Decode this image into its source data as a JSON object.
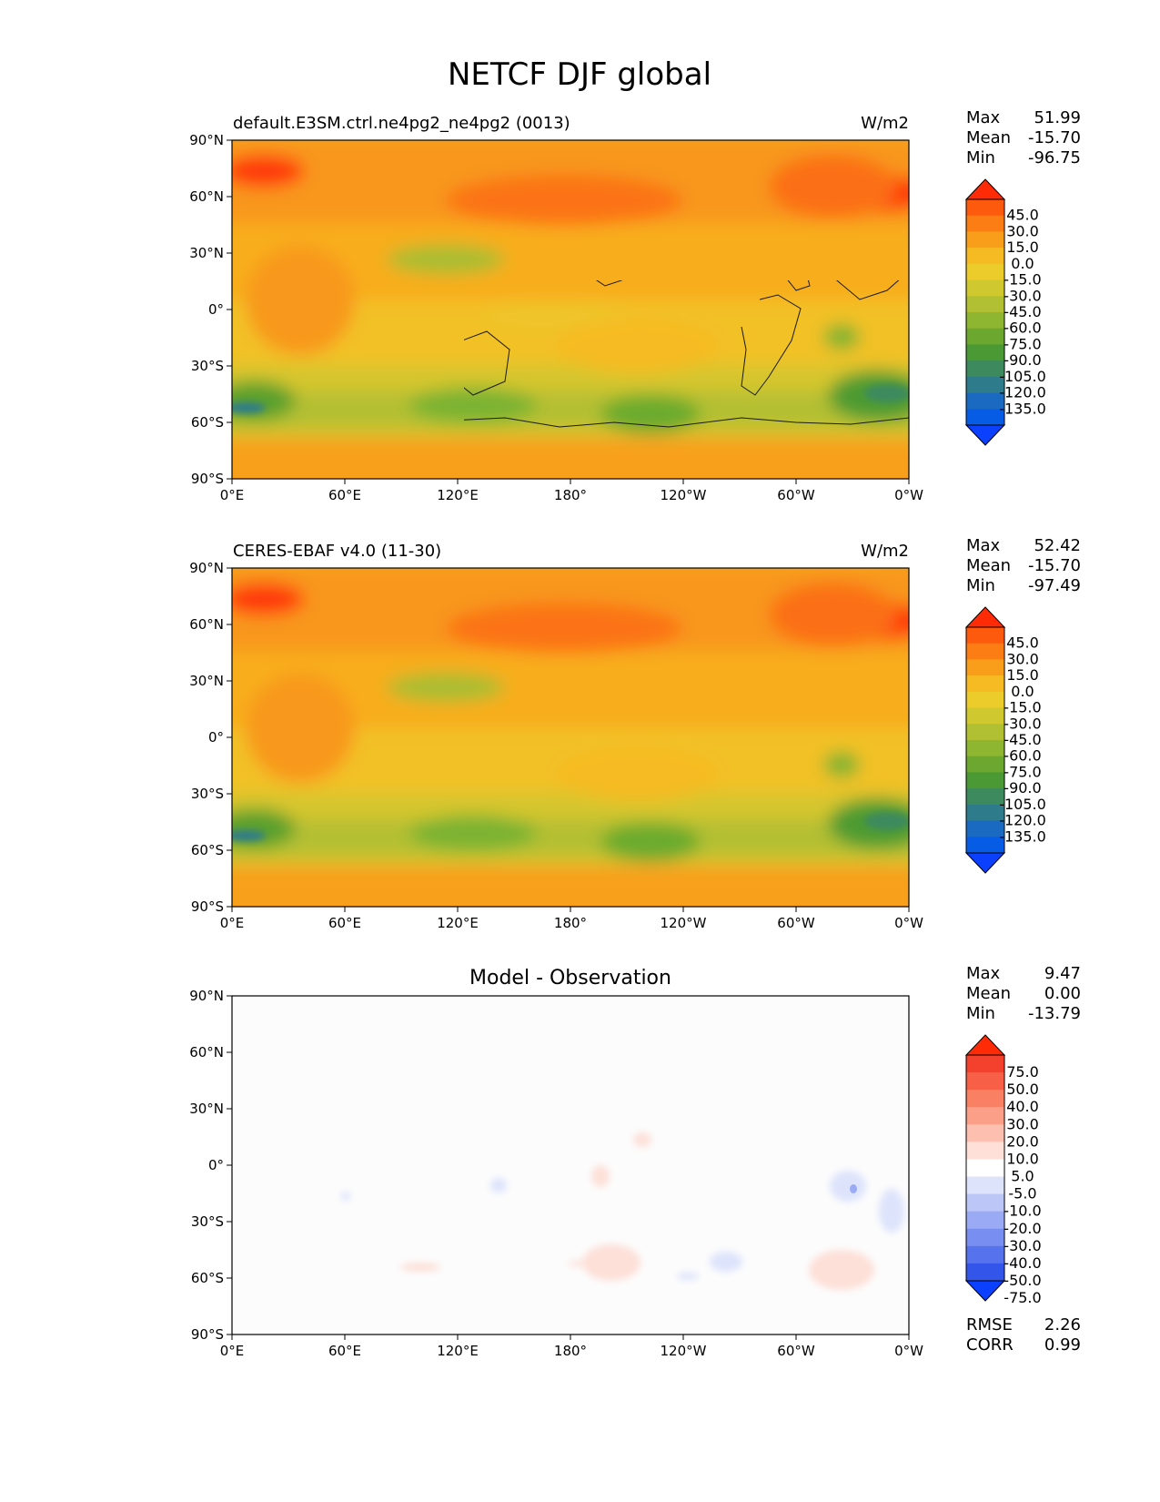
{
  "figure": {
    "title": "NETCF DJF global"
  },
  "panels": [
    {
      "id": "test",
      "title_left": "default.E3SM.ctrl.ne4pg2_ne4pg2 (0013)",
      "title_center": "",
      "units": "W/m2",
      "stats": [
        {
          "label": "Max",
          "value": "51.99"
        },
        {
          "label": "Mean",
          "value": "-15.70"
        },
        {
          "label": "Min",
          "value": "-96.75"
        }
      ],
      "colorbar": {
        "ticks": [
          "45.0",
          "30.0",
          "15.0",
          "0.0",
          "-15.0",
          "-30.0",
          "-45.0",
          "-60.0",
          "-75.0",
          "-90.0",
          "-105.0",
          "-120.0",
          "-135.0"
        ],
        "colors": [
          "#ff2a06",
          "#fe5a0d",
          "#fb7d13",
          "#f89e1a",
          "#f6bb22",
          "#ebcc2b",
          "#cfc82f",
          "#b1c032",
          "#8eb631",
          "#6ca82f",
          "#4a9935",
          "#3d8a5e",
          "#2e7b8c",
          "#1b6ac1",
          "#075ce6",
          "#0b40ff"
        ]
      }
    },
    {
      "id": "reference",
      "title_left": "CERES-EBAF v4.0 (11-30)",
      "title_center": "",
      "units": "W/m2",
      "stats": [
        {
          "label": "Max",
          "value": "52.42"
        },
        {
          "label": "Mean",
          "value": "-15.70"
        },
        {
          "label": "Min",
          "value": "-97.49"
        }
      ],
      "colorbar": {
        "ticks": [
          "45.0",
          "30.0",
          "15.0",
          "0.0",
          "-15.0",
          "-30.0",
          "-45.0",
          "-60.0",
          "-75.0",
          "-90.0",
          "-105.0",
          "-120.0",
          "-135.0"
        ],
        "colors": [
          "#ff2a06",
          "#fe5a0d",
          "#fb7d13",
          "#f89e1a",
          "#f6bb22",
          "#ebcc2b",
          "#cfc82f",
          "#b1c032",
          "#8eb631",
          "#6ca82f",
          "#4a9935",
          "#3d8a5e",
          "#2e7b8c",
          "#1b6ac1",
          "#075ce6",
          "#0b40ff"
        ]
      }
    },
    {
      "id": "difference",
      "title_left": "",
      "title_center": "Model - Observation",
      "units": "",
      "stats": [
        {
          "label": "Max",
          "value": "9.47"
        },
        {
          "label": "Mean",
          "value": "0.00"
        },
        {
          "label": "Min",
          "value": "-13.79"
        }
      ],
      "extra_stats": [
        {
          "label": "RMSE",
          "value": "2.26"
        },
        {
          "label": "CORR",
          "value": "0.99"
        }
      ],
      "colorbar": {
        "ticks": [
          "75.0",
          "50.0",
          "40.0",
          "30.0",
          "20.0",
          "10.0",
          "5.0",
          "-5.0",
          "-10.0",
          "-20.0",
          "-30.0",
          "-40.0",
          "-50.0",
          "-75.0"
        ],
        "colors": [
          "#ff2a06",
          "#f4412e",
          "#f76046",
          "#f98063",
          "#fb9f88",
          "#fdc0b0",
          "#fee0d8",
          "#ffffff",
          "#dde3fb",
          "#bcc7f8",
          "#9aaaf4",
          "#788ef1",
          "#5672ed",
          "#3455ea",
          "#0b40ff"
        ]
      }
    }
  ],
  "axes": {
    "lat_ticks": [
      "90°N",
      "60°N",
      "30°N",
      "0°",
      "30°S",
      "60°S",
      "90°S"
    ],
    "lon_ticks": [
      "0°E",
      "60°E",
      "120°E",
      "180°",
      "120°W",
      "60°W",
      "0°W"
    ]
  },
  "chart_data": [
    {
      "type": "heatmap",
      "title": "default.E3SM.ctrl.ne4pg2_ne4pg2 (0013)",
      "units": "W/m2",
      "xlim": [
        0,
        360
      ],
      "ylim": [
        -90,
        90
      ],
      "max": 51.99,
      "mean": -15.7,
      "min": -96.75,
      "fields": [
        {
          "lon": 20,
          "lat": 68,
          "value": 40
        },
        {
          "lon": 330,
          "lat": 60,
          "value": 45
        },
        {
          "lon": 120,
          "lat": 60,
          "value": 25
        },
        {
          "lon": 100,
          "lat": 40,
          "value": 15
        },
        {
          "lon": 110,
          "lat": 28,
          "value": -50
        },
        {
          "lon": 180,
          "lat": 15,
          "value": -25
        },
        {
          "lon": 25,
          "lat": 15,
          "value": 10
        },
        {
          "lon": 30,
          "lat": -55,
          "value": -85
        },
        {
          "lon": 130,
          "lat": -55,
          "value": -70
        },
        {
          "lon": 200,
          "lat": -55,
          "value": -75
        },
        {
          "lon": 300,
          "lat": -55,
          "value": -80
        },
        {
          "lon": 180,
          "lat": -80,
          "value": 5
        }
      ]
    },
    {
      "type": "heatmap",
      "title": "CERES-EBAF v4.0 (11-30)",
      "units": "W/m2",
      "xlim": [
        0,
        360
      ],
      "ylim": [
        -90,
        90
      ],
      "max": 52.42,
      "mean": -15.7,
      "min": -97.49,
      "fields": [
        {
          "lon": 20,
          "lat": 68,
          "value": 40
        },
        {
          "lon": 330,
          "lat": 60,
          "value": 45
        },
        {
          "lon": 120,
          "lat": 60,
          "value": 25
        },
        {
          "lon": 110,
          "lat": 28,
          "value": -50
        },
        {
          "lon": 30,
          "lat": -55,
          "value": -85
        },
        {
          "lon": 130,
          "lat": -55,
          "value": -70
        },
        {
          "lon": 200,
          "lat": -55,
          "value": -75
        },
        {
          "lon": 300,
          "lat": -55,
          "value": -80
        }
      ]
    },
    {
      "type": "heatmap",
      "title": "Model - Observation",
      "xlim": [
        0,
        360
      ],
      "ylim": [
        -90,
        90
      ],
      "max": 9.47,
      "mean": 0.0,
      "min": -13.79,
      "rmse": 2.26,
      "corr": 0.99,
      "fields": [
        {
          "lon": 195,
          "lat": 15,
          "value": 6
        },
        {
          "lon": 170,
          "lat": -5,
          "value": 6
        },
        {
          "lon": 200,
          "lat": -50,
          "value": 7
        },
        {
          "lon": 300,
          "lat": -55,
          "value": 7
        },
        {
          "lon": 140,
          "lat": -8,
          "value": -7
        },
        {
          "lon": 240,
          "lat": -50,
          "value": -7
        },
        {
          "lon": 285,
          "lat": -10,
          "value": -8
        },
        {
          "lon": 345,
          "lat": -25,
          "value": -7
        }
      ]
    }
  ]
}
